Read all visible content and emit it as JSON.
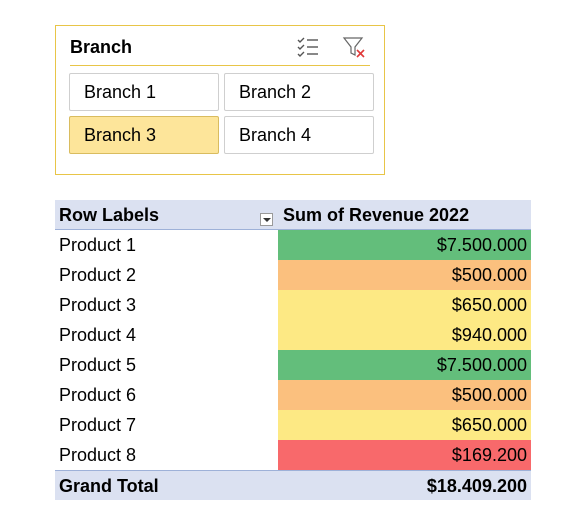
{
  "slicer": {
    "title": "Branch",
    "icons": [
      "multi-select-icon",
      "clear-filter-icon"
    ],
    "items": [
      {
        "label": "Branch 1",
        "selected": false
      },
      {
        "label": "Branch 2",
        "selected": false
      },
      {
        "label": "Branch 3",
        "selected": true
      },
      {
        "label": "Branch 4",
        "selected": false
      }
    ],
    "colors": {
      "border": "#e8c547",
      "selected": "#fde59a"
    }
  },
  "pivot": {
    "header": {
      "row_labels": "Row Labels",
      "value": "Sum of Revenue 2022"
    },
    "rows": [
      {
        "label": "Product 1",
        "value": "$7.500.000",
        "color": "#63be7b"
      },
      {
        "label": "Product 2",
        "value": "$500.000",
        "color": "#fbc07e"
      },
      {
        "label": "Product 3",
        "value": "$650.000",
        "color": "#fde984"
      },
      {
        "label": "Product 4",
        "value": "$940.000",
        "color": "#fde984"
      },
      {
        "label": "Product 5",
        "value": "$7.500.000",
        "color": "#63be7b"
      },
      {
        "label": "Product 6",
        "value": "$500.000",
        "color": "#fbc07e"
      },
      {
        "label": "Product 7",
        "value": "$650.000",
        "color": "#fde984"
      },
      {
        "label": "Product 8",
        "value": "$169.200",
        "color": "#f8696b"
      }
    ],
    "total": {
      "label": "Grand Total",
      "value": "$18.409.200"
    },
    "colors": {
      "header": "#dbe1f1"
    }
  }
}
